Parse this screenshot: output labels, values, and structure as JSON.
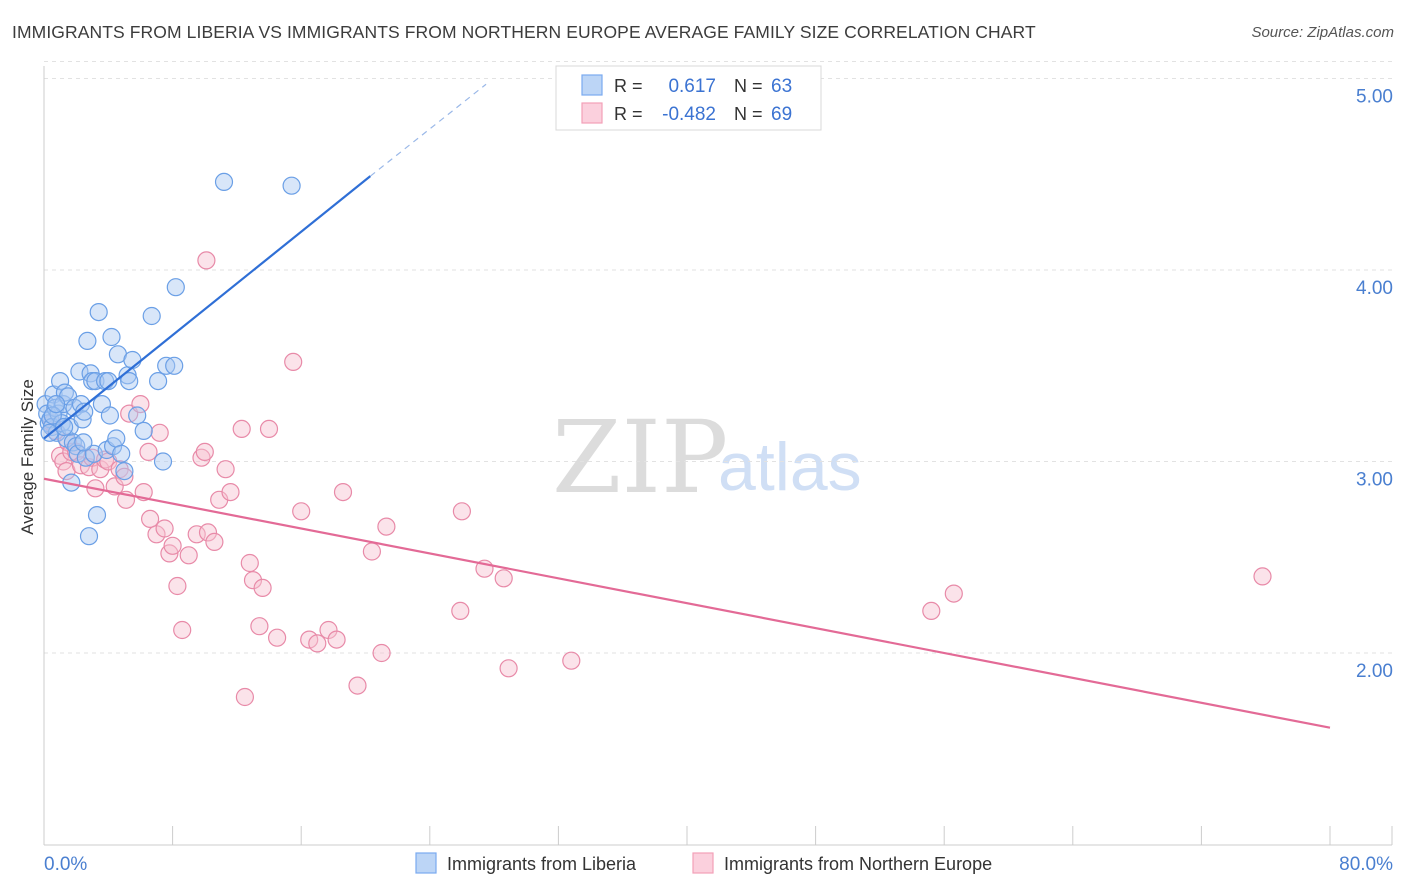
{
  "header": {
    "title": "IMMIGRANTS FROM LIBERIA VS IMMIGRANTS FROM NORTHERN EUROPE AVERAGE FAMILY SIZE CORRELATION CHART",
    "source": "Source: ZipAtlas.com"
  },
  "watermark": {
    "zip": "ZIP",
    "atlas": "atlas"
  },
  "stats": [
    {
      "r_label": "R =",
      "r_value": "0.617",
      "n_label": "N =",
      "n_value": "63",
      "color": "#7aaaf0"
    },
    {
      "r_label": "R =",
      "r_value": "-0.482",
      "n_label": "N =",
      "n_value": "69",
      "color": "#f2a0b8"
    }
  ],
  "colors": {
    "blue_fill": "#a9c8f2",
    "blue_stroke": "#6a9fe6",
    "blue_line": "#2f6fd6",
    "pink_fill": "#f6c0d0",
    "pink_stroke": "#e88aa8",
    "pink_line": "#e36a96",
    "tick_text": "#4a7fd0",
    "grid": "#e2e2e2",
    "axis": "#cccccc"
  },
  "chart_data": {
    "type": "scatter",
    "title": "IMMIGRANTS FROM LIBERIA VS IMMIGRANTS FROM NORTHERN EUROPE AVERAGE FAMILY SIZE CORRELATION CHART",
    "xlabel": "",
    "ylabel": "Average Family Size",
    "xlim": [
      0,
      80
    ],
    "ylim": [
      1.0,
      5.1
    ],
    "x_tick_labels": [
      "0.0%",
      "80.0%"
    ],
    "y_ticks": [
      {
        "value": 2.0,
        "label": "2.00"
      },
      {
        "value": 3.0,
        "label": "3.00"
      },
      {
        "value": 4.0,
        "label": "4.00"
      },
      {
        "value": 5.0,
        "label": "5.00"
      }
    ],
    "grid": true,
    "legend_position": "bottom",
    "series": [
      {
        "name": "Immigrants from Liberia",
        "color": "#6a9fe6",
        "points": [
          [
            0.1,
            3.3
          ],
          [
            0.2,
            3.25
          ],
          [
            0.3,
            3.2
          ],
          [
            0.4,
            3.22
          ],
          [
            0.5,
            3.18
          ],
          [
            0.6,
            3.35
          ],
          [
            0.7,
            3.28
          ],
          [
            0.8,
            3.15
          ],
          [
            0.9,
            3.25
          ],
          [
            1.0,
            3.42
          ],
          [
            1.1,
            3.2
          ],
          [
            1.2,
            3.3
          ],
          [
            1.3,
            3.36
          ],
          [
            1.4,
            3.12
          ],
          [
            1.5,
            3.34
          ],
          [
            1.6,
            3.18
          ],
          [
            1.7,
            2.89
          ],
          [
            1.8,
            3.1
          ],
          [
            1.9,
            3.28
          ],
          [
            2.0,
            3.08
          ],
          [
            2.1,
            3.04
          ],
          [
            2.2,
            3.47
          ],
          [
            2.3,
            3.3
          ],
          [
            2.4,
            3.22
          ],
          [
            2.5,
            3.26
          ],
          [
            2.6,
            3.02
          ],
          [
            2.7,
            3.63
          ],
          [
            2.8,
            2.61
          ],
          [
            2.9,
            3.46
          ],
          [
            3.0,
            3.42
          ],
          [
            3.1,
            3.04
          ],
          [
            3.2,
            3.42
          ],
          [
            3.3,
            2.72
          ],
          [
            3.4,
            3.78
          ],
          [
            3.6,
            3.3
          ],
          [
            3.8,
            3.42
          ],
          [
            3.9,
            3.06
          ],
          [
            4.0,
            3.42
          ],
          [
            4.1,
            3.24
          ],
          [
            4.2,
            3.65
          ],
          [
            4.3,
            3.08
          ],
          [
            4.5,
            3.12
          ],
          [
            4.6,
            3.56
          ],
          [
            4.8,
            3.04
          ],
          [
            5.0,
            2.95
          ],
          [
            5.2,
            3.45
          ],
          [
            5.3,
            3.42
          ],
          [
            5.5,
            3.53
          ],
          [
            5.8,
            3.24
          ],
          [
            6.2,
            3.16
          ],
          [
            6.7,
            3.76
          ],
          [
            7.1,
            3.42
          ],
          [
            7.4,
            3.0
          ],
          [
            7.6,
            3.5
          ],
          [
            8.1,
            3.5
          ],
          [
            8.2,
            3.91
          ],
          [
            11.2,
            4.46
          ],
          [
            15.4,
            4.44
          ],
          [
            0.35,
            3.15
          ],
          [
            0.55,
            3.24
          ],
          [
            0.75,
            3.3
          ],
          [
            1.25,
            3.18
          ],
          [
            2.45,
            3.1
          ]
        ],
        "trend": {
          "x0": 0,
          "y0": 3.12,
          "x1": 20.3,
          "y1": 4.49,
          "dash_x1": 27.5,
          "dash_y1": 4.97
        }
      },
      {
        "name": "Immigrants from Northern Europe",
        "color": "#e88aa8",
        "points": [
          [
            0.5,
            3.2
          ],
          [
            0.7,
            3.16
          ],
          [
            1.0,
            3.03
          ],
          [
            1.2,
            3.0
          ],
          [
            1.4,
            2.95
          ],
          [
            1.5,
            3.1
          ],
          [
            1.7,
            3.05
          ],
          [
            2.0,
            3.05
          ],
          [
            2.3,
            2.98
          ],
          [
            2.8,
            2.97
          ],
          [
            3.0,
            3.02
          ],
          [
            3.2,
            2.86
          ],
          [
            3.5,
            2.96
          ],
          [
            3.8,
            3.01
          ],
          [
            4.0,
            3.0
          ],
          [
            4.4,
            2.87
          ],
          [
            4.7,
            2.96
          ],
          [
            5.0,
            2.92
          ],
          [
            5.1,
            2.8
          ],
          [
            5.3,
            3.25
          ],
          [
            6.0,
            3.3
          ],
          [
            6.2,
            2.84
          ],
          [
            6.5,
            3.05
          ],
          [
            6.6,
            2.7
          ],
          [
            7.0,
            2.62
          ],
          [
            7.2,
            3.15
          ],
          [
            7.5,
            2.65
          ],
          [
            7.8,
            2.52
          ],
          [
            8.0,
            2.56
          ],
          [
            8.3,
            2.35
          ],
          [
            8.6,
            2.12
          ],
          [
            9.0,
            2.51
          ],
          [
            9.5,
            2.62
          ],
          [
            9.8,
            3.02
          ],
          [
            10.0,
            3.05
          ],
          [
            10.2,
            2.63
          ],
          [
            10.6,
            2.58
          ],
          [
            10.9,
            2.8
          ],
          [
            11.3,
            2.96
          ],
          [
            11.6,
            2.84
          ],
          [
            12.3,
            3.17
          ],
          [
            12.8,
            2.47
          ],
          [
            13.0,
            2.38
          ],
          [
            13.4,
            2.14
          ],
          [
            13.6,
            2.34
          ],
          [
            14.0,
            3.17
          ],
          [
            14.5,
            2.08
          ],
          [
            15.5,
            3.52
          ],
          [
            16.0,
            2.74
          ],
          [
            16.5,
            2.07
          ],
          [
            17.0,
            2.05
          ],
          [
            17.7,
            2.12
          ],
          [
            18.2,
            2.07
          ],
          [
            18.6,
            2.84
          ],
          [
            19.5,
            1.83
          ],
          [
            20.4,
            2.53
          ],
          [
            21.0,
            2.0
          ],
          [
            21.3,
            2.66
          ],
          [
            25.9,
            2.22
          ],
          [
            26.0,
            2.74
          ],
          [
            27.4,
            2.44
          ],
          [
            28.6,
            2.39
          ],
          [
            28.9,
            1.92
          ],
          [
            32.8,
            1.96
          ],
          [
            55.2,
            2.22
          ],
          [
            56.6,
            2.31
          ],
          [
            75.8,
            2.4
          ],
          [
            12.5,
            1.77
          ],
          [
            10.1,
            4.05
          ]
        ],
        "trend": {
          "x0": 0,
          "y0": 2.91,
          "x1": 80,
          "y1": 1.61
        }
      }
    ]
  }
}
